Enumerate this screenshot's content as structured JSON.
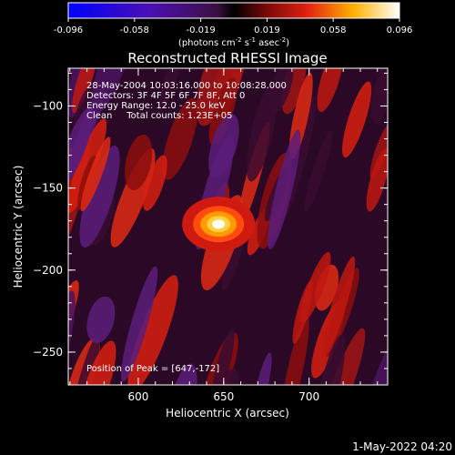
{
  "colorbar": {
    "ticks": [
      "-0.096",
      "-0.058",
      "-0.019",
      "0.019",
      "0.058",
      "0.096"
    ],
    "units_prefix": "(photons cm",
    "units_exp1": "-2",
    "units_mid": " s",
    "units_exp2": "-1",
    "units_mid2": " asec",
    "units_exp3": "-2",
    "units_suffix": ")"
  },
  "chart_data": {
    "type": "heatmap",
    "title": "Reconstructed RHESSI Image",
    "xlabel": "Heliocentric X (arcsec)",
    "ylabel": "Heliocentric Y (arcsec)",
    "xlim": [
      559,
      746
    ],
    "ylim": [
      -270,
      -77
    ],
    "x_ticks": [
      600,
      650,
      700
    ],
    "x_tick_labels": [
      "600",
      "650",
      "700"
    ],
    "y_ticks": [
      -100,
      -150,
      -200,
      -250
    ],
    "y_tick_labels": [
      "−100",
      "−150",
      "−200",
      "−250"
    ],
    "zlim": [
      -0.096,
      0.096
    ],
    "colormap": "blue-purple-red-yellow-white",
    "peak": {
      "x": 647,
      "y": -172
    },
    "annotations": [
      "28-May-2004 10:03:16.000 to 10:08:28.000",
      "Detectors: 3F 4F 5F 6F 7F 8F, Att 0",
      "Energy Range: 12.0 - 25.0 keV",
      "Clean     Total counts: 1.23E+05"
    ],
    "peak_label": "Position of Peak = [647,-172]"
  },
  "timestamp": "1-May-2022 04:20"
}
